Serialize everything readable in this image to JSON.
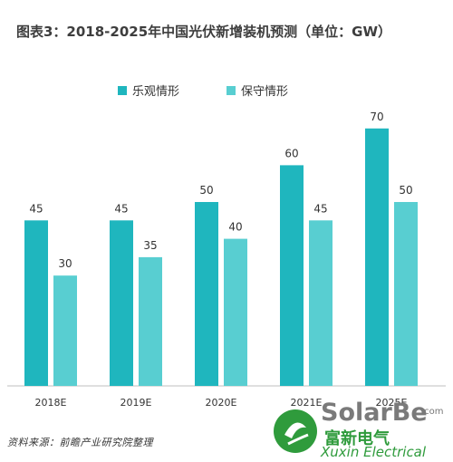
{
  "title": "图表3：2018-2025年中国光伏新增装机预测（单位：GW）",
  "source": "资料来源：前瞻产业研究院整理",
  "colors": {
    "optimistic": "#1fb6be",
    "conservative": "#58ced1"
  },
  "watermark": {
    "brand": "SolarBe",
    "dotcom": ".com",
    "cn_text": "富新电气",
    "en_text": "Xuxin Electrical"
  },
  "chart_data": {
    "type": "bar",
    "title": "图表3：2018-2025年中国光伏新增装机预测（单位：GW）",
    "categories": [
      "2018E",
      "2019E",
      "2020E",
      "2021E",
      "2025E"
    ],
    "series": [
      {
        "name": "乐观情形",
        "values": [
          45,
          45,
          50,
          60,
          70
        ]
      },
      {
        "name": "保守情形",
        "values": [
          30,
          35,
          40,
          45,
          50
        ]
      }
    ],
    "ylim": [
      0,
      80
    ],
    "grid": false,
    "legend": "top"
  }
}
